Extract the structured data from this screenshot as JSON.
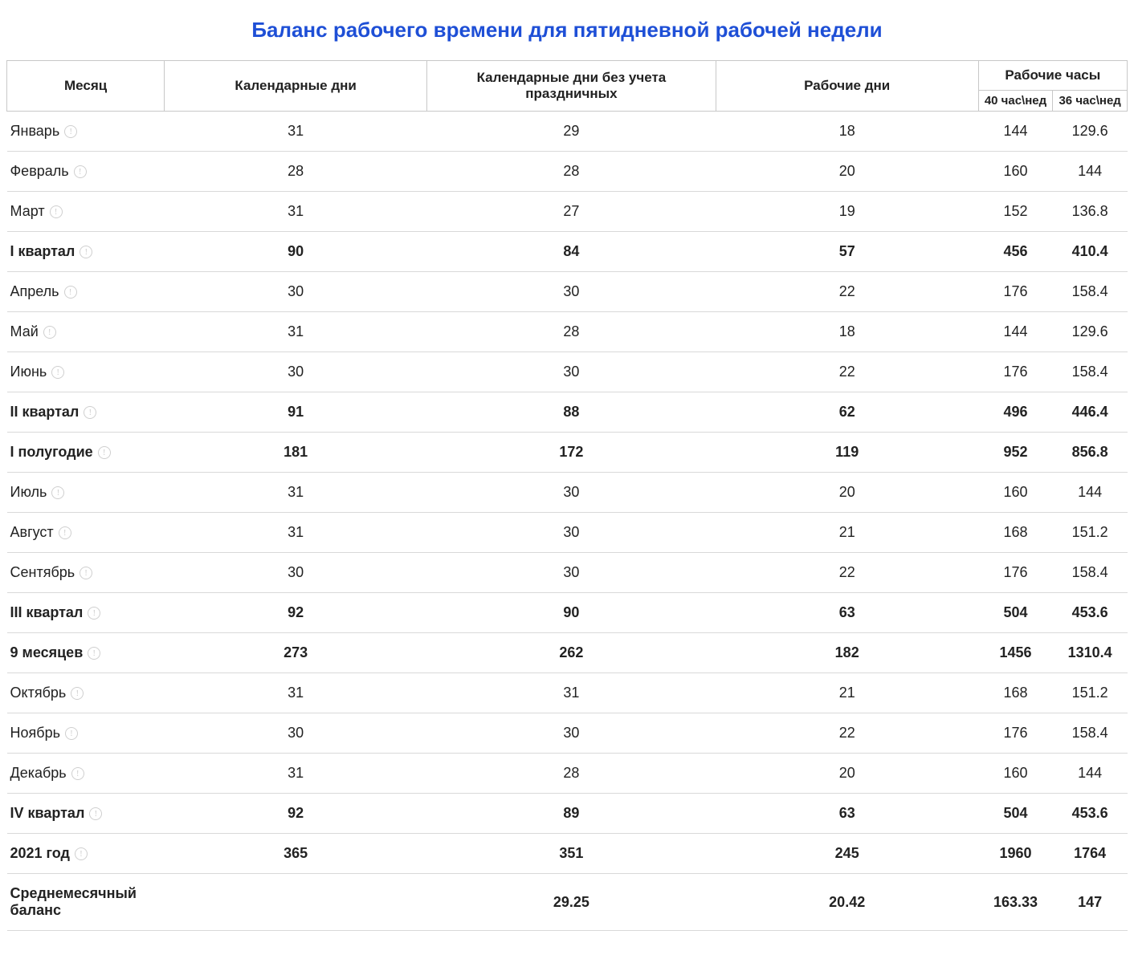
{
  "title": "Баланс рабочего времени для пятидневной рабочей недели",
  "colors": {
    "title": "#1e4fd6",
    "header_border": "#c8c8c8",
    "row_border": "#d9d9d9",
    "icon": "#cfcfcf",
    "text": "#222222",
    "background": "#ffffff"
  },
  "typography": {
    "title_fontsize": 26,
    "header_fontsize": 17,
    "subheader_fontsize": 15,
    "body_fontsize": 18,
    "font_family": "Segoe UI"
  },
  "columns": {
    "month": "Месяц",
    "cal_days": "Календарные дни",
    "cal_days_no_holidays": "Календарные дни без учета праздничных",
    "work_days": "Рабочие дни",
    "work_hours": "Рабочие часы",
    "h40": "40 час\\нед",
    "h36": "36 час\\нед"
  },
  "rows": [
    {
      "label": "Январь",
      "icon": true,
      "bold": false,
      "cal": "31",
      "calh": "29",
      "work": "18",
      "h40": "144",
      "h36": "129.6"
    },
    {
      "label": "Февраль",
      "icon": true,
      "bold": false,
      "cal": "28",
      "calh": "28",
      "work": "20",
      "h40": "160",
      "h36": "144"
    },
    {
      "label": "Март",
      "icon": true,
      "bold": false,
      "cal": "31",
      "calh": "27",
      "work": "19",
      "h40": "152",
      "h36": "136.8"
    },
    {
      "label": "I квартал",
      "icon": true,
      "bold": true,
      "cal": "90",
      "calh": "84",
      "work": "57",
      "h40": "456",
      "h36": "410.4"
    },
    {
      "label": "Апрель",
      "icon": true,
      "bold": false,
      "cal": "30",
      "calh": "30",
      "work": "22",
      "h40": "176",
      "h36": "158.4"
    },
    {
      "label": "Май",
      "icon": true,
      "bold": false,
      "cal": "31",
      "calh": "28",
      "work": "18",
      "h40": "144",
      "h36": "129.6"
    },
    {
      "label": "Июнь",
      "icon": true,
      "bold": false,
      "cal": "30",
      "calh": "30",
      "work": "22",
      "h40": "176",
      "h36": "158.4"
    },
    {
      "label": "II квартал",
      "icon": true,
      "bold": true,
      "cal": "91",
      "calh": "88",
      "work": "62",
      "h40": "496",
      "h36": "446.4"
    },
    {
      "label": "I полугодие",
      "icon": true,
      "bold": true,
      "cal": "181",
      "calh": "172",
      "work": "119",
      "h40": "952",
      "h36": "856.8"
    },
    {
      "label": "Июль",
      "icon": true,
      "bold": false,
      "cal": "31",
      "calh": "30",
      "work": "20",
      "h40": "160",
      "h36": "144"
    },
    {
      "label": "Август",
      "icon": true,
      "bold": false,
      "cal": "31",
      "calh": "30",
      "work": "21",
      "h40": "168",
      "h36": "151.2"
    },
    {
      "label": "Сентябрь",
      "icon": true,
      "bold": false,
      "cal": "30",
      "calh": "30",
      "work": "22",
      "h40": "176",
      "h36": "158.4"
    },
    {
      "label": "III квартал",
      "icon": true,
      "bold": true,
      "cal": "92",
      "calh": "90",
      "work": "63",
      "h40": "504",
      "h36": "453.6"
    },
    {
      "label": "9 месяцев",
      "icon": true,
      "bold": true,
      "cal": "273",
      "calh": "262",
      "work": "182",
      "h40": "1456",
      "h36": "1310.4"
    },
    {
      "label": "Октябрь",
      "icon": true,
      "bold": false,
      "cal": "31",
      "calh": "31",
      "work": "21",
      "h40": "168",
      "h36": "151.2"
    },
    {
      "label": "Ноябрь",
      "icon": true,
      "bold": false,
      "cal": "30",
      "calh": "30",
      "work": "22",
      "h40": "176",
      "h36": "158.4"
    },
    {
      "label": "Декабрь",
      "icon": true,
      "bold": false,
      "cal": "31",
      "calh": "28",
      "work": "20",
      "h40": "160",
      "h36": "144"
    },
    {
      "label": "IV квартал",
      "icon": true,
      "bold": true,
      "cal": "92",
      "calh": "89",
      "work": "63",
      "h40": "504",
      "h36": "453.6"
    },
    {
      "label": "2021 год",
      "icon": true,
      "bold": true,
      "cal": "365",
      "calh": "351",
      "work": "245",
      "h40": "1960",
      "h36": "1764"
    },
    {
      "label": "Среднемесячный баланс",
      "icon": false,
      "bold": true,
      "cal": "",
      "calh": "29.25",
      "work": "20.42",
      "h40": "163.33",
      "h36": "147"
    }
  ]
}
